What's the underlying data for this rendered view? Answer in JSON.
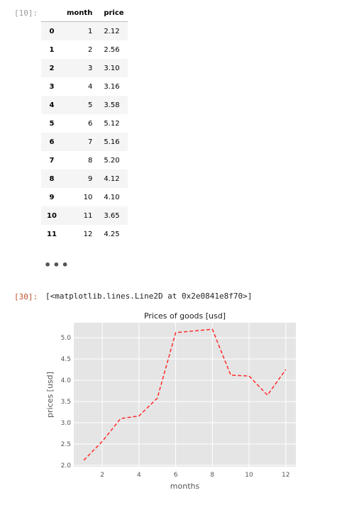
{
  "cell_in": {
    "prompt": "[10]:"
  },
  "table": {
    "index_header": "",
    "columns": [
      "month",
      "price"
    ],
    "rows": [
      {
        "index": "0",
        "month": "1",
        "price": "2.12"
      },
      {
        "index": "1",
        "month": "2",
        "price": "2.56"
      },
      {
        "index": "2",
        "month": "3",
        "price": "3.10"
      },
      {
        "index": "3",
        "month": "4",
        "price": "3.16"
      },
      {
        "index": "4",
        "month": "5",
        "price": "3.58"
      },
      {
        "index": "5",
        "month": "6",
        "price": "5.12"
      },
      {
        "index": "6",
        "month": "7",
        "price": "5.16"
      },
      {
        "index": "7",
        "month": "8",
        "price": "5.20"
      },
      {
        "index": "8",
        "month": "9",
        "price": "4.12"
      },
      {
        "index": "9",
        "month": "10",
        "price": "4.10"
      },
      {
        "index": "10",
        "month": "11",
        "price": "3.65"
      },
      {
        "index": "11",
        "month": "12",
        "price": "4.25"
      }
    ]
  },
  "truncation": "•••",
  "cell_out": {
    "prompt": "[30]:",
    "repr": "[<matplotlib.lines.Line2D at 0x2e0841e8f70>]"
  },
  "chart_data": {
    "type": "line",
    "title": "Prices of goods [usd]",
    "xlabel": "months",
    "ylabel": "prices [usd]",
    "x": [
      1,
      2,
      3,
      4,
      5,
      6,
      7,
      8,
      9,
      10,
      11,
      12
    ],
    "series": [
      {
        "values": [
          2.12,
          2.56,
          3.1,
          3.16,
          3.58,
          5.12,
          5.16,
          5.2,
          4.12,
          4.1,
          3.65,
          4.25
        ],
        "color": "#ff2a2a",
        "linestyle": "dashed"
      }
    ],
    "xticks": [
      2,
      4,
      6,
      8,
      10,
      12
    ],
    "xtick_labels": [
      "2",
      "4",
      "6",
      "8",
      "10",
      "12"
    ],
    "yticks": [
      2.0,
      2.5,
      3.0,
      3.5,
      4.0,
      4.5,
      5.0
    ],
    "ytick_labels": [
      "2.0",
      "2.5",
      "3.0",
      "3.5",
      "4.0",
      "4.5",
      "5.0"
    ],
    "xlim": [
      0.45,
      12.55
    ],
    "ylim": [
      1.966,
      5.354
    ],
    "grid": true,
    "style": "ggplot",
    "background_color": "#e5e5e5",
    "grid_color": "#ffffff"
  }
}
